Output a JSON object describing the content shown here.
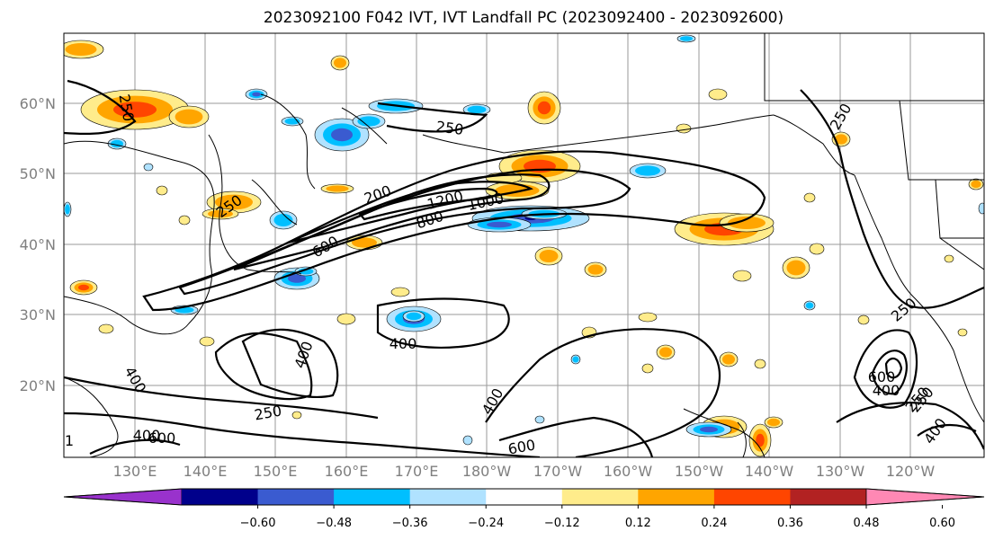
{
  "title": "2023092100 F042 IVT, IVT Landfall PC (2023092400 - 2023092600)",
  "map": {
    "lat_ticks": [
      "60°N",
      "50°N",
      "40°N",
      "30°N",
      "20°N"
    ],
    "lon_ticks": [
      "130°E",
      "140°E",
      "150°E",
      "160°E",
      "170°E",
      "180°W",
      "170°W",
      "160°W",
      "150°W",
      "140°W",
      "130°W",
      "120°W"
    ],
    "contour_labels": [
      "250",
      "250",
      "250",
      "250",
      "250",
      "200",
      "1200",
      "1000",
      "800",
      "600",
      "400",
      "400",
      "400",
      "400",
      "250",
      "400",
      "600",
      "600",
      "250",
      "600",
      "400",
      "250",
      "400",
      "1"
    ]
  },
  "colorbar": {
    "ticks": [
      "−0.60",
      "−0.48",
      "−0.36",
      "−0.24",
      "−0.12",
      "0.12",
      "0.24",
      "0.36",
      "0.48",
      "0.60"
    ],
    "colors": [
      "#9932cc",
      "#00008b",
      "#3a5bd0",
      "#00bfff",
      "#b0e2ff",
      "#ffffff",
      "#ffec8b",
      "#ffa500",
      "#ff4500",
      "#b22222",
      "#ff88b4"
    ]
  },
  "colors": {
    "positive": [
      "#ffec8b",
      "#ffa500",
      "#ff4500"
    ],
    "negative": [
      "#b0e2ff",
      "#00bfff",
      "#3a5bd0",
      "#00008b"
    ]
  }
}
